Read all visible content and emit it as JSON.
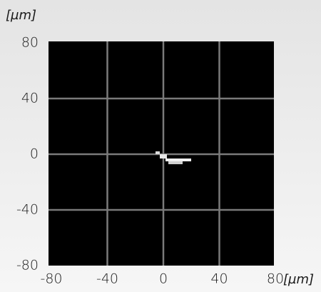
{
  "chart_data": {
    "type": "image",
    "y_label": "[µm]",
    "x_label": "[µm]",
    "xlim": [
      -80,
      80
    ],
    "ylim": [
      -80,
      80
    ],
    "xticks": [
      -80,
      -40,
      0,
      40,
      80
    ],
    "yticks": [
      -80,
      -40,
      0,
      40,
      80
    ],
    "grid": true,
    "background": "#000000",
    "grid_color": "#7a7a7a"
  }
}
